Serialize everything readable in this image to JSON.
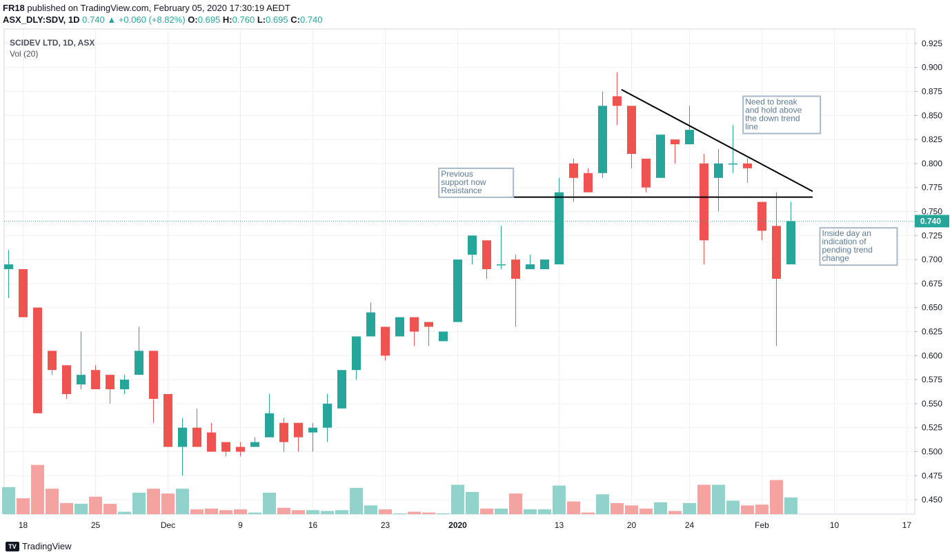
{
  "header": {
    "author": "FR18",
    "published_text": "published on TradingView.com, February 05, 2020 17:30:19 AEDT",
    "symbol": "ASX_DLY:SDV, 1D",
    "last": "0.740",
    "change": "+0.060 (+8.82%)",
    "open_label": "O:",
    "open": "0.695",
    "high_label": "H:",
    "high": "0.760",
    "low_label": "L:",
    "low": "0.695",
    "close_label": "C:",
    "close": "0.740"
  },
  "legend": {
    "instrument": "SCIDEV LTD, 1D, ASX",
    "volume": "Vol (20)"
  },
  "footer": {
    "brand": "TradingView",
    "brand_icon": "tradingview-logo-icon"
  },
  "colors": {
    "up": "#26a69a",
    "down": "#ef5350",
    "up_vol": "#8fd3cb",
    "down_vol": "#f5a3a1",
    "grid": "#eef0f3",
    "last_price_bg": "#26a69a"
  },
  "chart_data": {
    "type": "candlestick",
    "title": "SCIDEV LTD, 1D, ASX",
    "ylim": [
      0.435,
      0.94
    ],
    "y_ticks": [
      "0.450",
      "0.475",
      "0.500",
      "0.525",
      "0.550",
      "0.575",
      "0.600",
      "0.625",
      "0.650",
      "0.675",
      "0.700",
      "0.725",
      "0.750",
      "0.775",
      "0.800",
      "0.825",
      "0.850",
      "0.875",
      "0.900",
      "0.925"
    ],
    "x_tick_labels": [
      {
        "label": "18",
        "index": 1
      },
      {
        "label": "25",
        "index": 6
      },
      {
        "label": "Dec",
        "index": 11
      },
      {
        "label": "9",
        "index": 16
      },
      {
        "label": "16",
        "index": 21
      },
      {
        "label": "23",
        "index": 26
      },
      {
        "label": "2020",
        "index": 31
      },
      {
        "label": "13",
        "index": 38
      },
      {
        "label": "20",
        "index": 43
      },
      {
        "label": "24",
        "index": 47
      },
      {
        "label": "Feb",
        "index": 52
      },
      {
        "label": "10",
        "index": 57
      },
      {
        "label": "17",
        "index": 62
      }
    ],
    "last_price": "0.740",
    "candles": [
      {
        "o": 0.69,
        "h": 0.71,
        "l": 0.66,
        "c": 0.695,
        "v": 0.34
      },
      {
        "o": 0.69,
        "h": 0.69,
        "l": 0.64,
        "c": 0.64,
        "v": 0.2
      },
      {
        "o": 0.65,
        "h": 0.65,
        "l": 0.54,
        "c": 0.54,
        "v": 0.62
      },
      {
        "o": 0.605,
        "h": 0.605,
        "l": 0.58,
        "c": 0.585,
        "v": 0.32
      },
      {
        "o": 0.59,
        "h": 0.59,
        "l": 0.555,
        "c": 0.56,
        "v": 0.14
      },
      {
        "o": 0.57,
        "h": 0.625,
        "l": 0.565,
        "c": 0.58,
        "v": 0.13
      },
      {
        "o": 0.585,
        "h": 0.59,
        "l": 0.565,
        "c": 0.565,
        "v": 0.22
      },
      {
        "o": 0.58,
        "h": 0.58,
        "l": 0.55,
        "c": 0.565,
        "v": 0.13
      },
      {
        "o": 0.565,
        "h": 0.58,
        "l": 0.56,
        "c": 0.575,
        "v": 0.03
      },
      {
        "o": 0.58,
        "h": 0.63,
        "l": 0.58,
        "c": 0.605,
        "v": 0.27
      },
      {
        "o": 0.605,
        "h": 0.605,
        "l": 0.53,
        "c": 0.555,
        "v": 0.32
      },
      {
        "o": 0.56,
        "h": 0.56,
        "l": 0.505,
        "c": 0.505,
        "v": 0.26
      },
      {
        "o": 0.505,
        "h": 0.535,
        "l": 0.475,
        "c": 0.525,
        "v": 0.32
      },
      {
        "o": 0.525,
        "h": 0.545,
        "l": 0.505,
        "c": 0.505,
        "v": 0.06
      },
      {
        "o": 0.52,
        "h": 0.53,
        "l": 0.5,
        "c": 0.5,
        "v": 0.07
      },
      {
        "o": 0.51,
        "h": 0.51,
        "l": 0.495,
        "c": 0.5,
        "v": 0.05
      },
      {
        "o": 0.505,
        "h": 0.51,
        "l": 0.495,
        "c": 0.5,
        "v": 0.06
      },
      {
        "o": 0.505,
        "h": 0.515,
        "l": 0.505,
        "c": 0.51,
        "v": 0.02
      },
      {
        "o": 0.515,
        "h": 0.56,
        "l": 0.515,
        "c": 0.54,
        "v": 0.27
      },
      {
        "o": 0.53,
        "h": 0.535,
        "l": 0.5,
        "c": 0.51,
        "v": 0.08
      },
      {
        "o": 0.53,
        "h": 0.53,
        "l": 0.5,
        "c": 0.515,
        "v": 0.05
      },
      {
        "o": 0.52,
        "h": 0.53,
        "l": 0.5,
        "c": 0.525,
        "v": 0.05
      },
      {
        "o": 0.525,
        "h": 0.56,
        "l": 0.51,
        "c": 0.55,
        "v": 0.04
      },
      {
        "o": 0.545,
        "h": 0.585,
        "l": 0.545,
        "c": 0.585,
        "v": 0.05
      },
      {
        "o": 0.585,
        "h": 0.62,
        "l": 0.575,
        "c": 0.62,
        "v": 0.33
      },
      {
        "o": 0.62,
        "h": 0.655,
        "l": 0.62,
        "c": 0.645,
        "v": 0.11
      },
      {
        "o": 0.63,
        "h": 0.63,
        "l": 0.595,
        "c": 0.6,
        "v": 0.06
      },
      {
        "o": 0.62,
        "h": 0.64,
        "l": 0.62,
        "c": 0.64,
        "v": 0.01
      },
      {
        "o": 0.64,
        "h": 0.64,
        "l": 0.61,
        "c": 0.625,
        "v": 0.03
      },
      {
        "o": 0.635,
        "h": 0.635,
        "l": 0.61,
        "c": 0.63,
        "v": 0.02
      },
      {
        "o": 0.615,
        "h": 0.625,
        "l": 0.615,
        "c": 0.625,
        "v": 0.01
      },
      {
        "o": 0.635,
        "h": 0.7,
        "l": 0.635,
        "c": 0.7,
        "v": 0.37
      },
      {
        "o": 0.705,
        "h": 0.725,
        "l": 0.695,
        "c": 0.725,
        "v": 0.28
      },
      {
        "o": 0.72,
        "h": 0.72,
        "l": 0.68,
        "c": 0.69,
        "v": 0.07
      },
      {
        "o": 0.695,
        "h": 0.735,
        "l": 0.69,
        "c": 0.695,
        "v": 0.07
      },
      {
        "o": 0.7,
        "h": 0.705,
        "l": 0.63,
        "c": 0.68,
        "v": 0.26
      },
      {
        "o": 0.69,
        "h": 0.705,
        "l": 0.69,
        "c": 0.695,
        "v": 0.06
      },
      {
        "o": 0.69,
        "h": 0.7,
        "l": 0.69,
        "c": 0.7,
        "v": 0.06
      },
      {
        "o": 0.695,
        "h": 0.785,
        "l": 0.695,
        "c": 0.77,
        "v": 0.36
      },
      {
        "o": 0.8,
        "h": 0.805,
        "l": 0.76,
        "c": 0.785,
        "v": 0.16
      },
      {
        "o": 0.79,
        "h": 0.795,
        "l": 0.77,
        "c": 0.77,
        "v": 0.02
      },
      {
        "o": 0.79,
        "h": 0.875,
        "l": 0.785,
        "c": 0.86,
        "v": 0.25
      },
      {
        "o": 0.87,
        "h": 0.895,
        "l": 0.84,
        "c": 0.86,
        "v": 0.14
      },
      {
        "o": 0.86,
        "h": 0.86,
        "l": 0.795,
        "c": 0.81,
        "v": 0.11
      },
      {
        "o": 0.805,
        "h": 0.805,
        "l": 0.77,
        "c": 0.775,
        "v": 0.07
      },
      {
        "o": 0.785,
        "h": 0.83,
        "l": 0.785,
        "c": 0.83,
        "v": 0.15
      },
      {
        "o": 0.825,
        "h": 0.825,
        "l": 0.8,
        "c": 0.82,
        "v": 0.04
      },
      {
        "o": 0.82,
        "h": 0.86,
        "l": 0.82,
        "c": 0.835,
        "v": 0.14
      },
      {
        "o": 0.8,
        "h": 0.81,
        "l": 0.695,
        "c": 0.72,
        "v": 0.37
      },
      {
        "o": 0.785,
        "h": 0.815,
        "l": 0.75,
        "c": 0.8,
        "v": 0.37
      },
      {
        "o": 0.8,
        "h": 0.84,
        "l": 0.79,
        "c": 0.8,
        "v": 0.17
      },
      {
        "o": 0.8,
        "h": 0.805,
        "l": 0.78,
        "c": 0.795,
        "v": 0.11
      },
      {
        "o": 0.76,
        "h": 0.76,
        "l": 0.72,
        "c": 0.73,
        "v": 0.12
      },
      {
        "o": 0.735,
        "h": 0.77,
        "l": 0.61,
        "c": 0.68,
        "v": 0.43
      },
      {
        "o": 0.695,
        "h": 0.76,
        "l": 0.695,
        "c": 0.74,
        "v": 0.21
      }
    ],
    "drawings": {
      "resistance_line": {
        "y": 0.765,
        "from_index": 34.5,
        "to_index": 55.5
      },
      "down_trend_line": {
        "y1": 0.877,
        "from_index": 42.3,
        "y2": 0.771,
        "to_index": 55.5
      }
    },
    "annotations": [
      {
        "text": [
          "Previous",
          "support now",
          "Resistance"
        ],
        "index": 29.7,
        "y": 0.795
      },
      {
        "text": [
          "Need to break",
          "and hold above",
          "the down trend",
          "line"
        ],
        "index": 50.7,
        "y": 0.87
      },
      {
        "text": [
          "Inside day an",
          "indication of",
          "pending trend",
          "change"
        ],
        "index": 56.0,
        "y": 0.733
      }
    ]
  }
}
